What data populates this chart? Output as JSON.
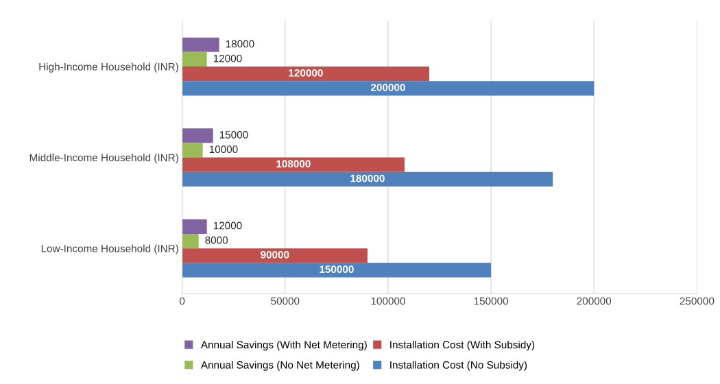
{
  "chart_data": {
    "type": "bar",
    "orientation": "horizontal",
    "categories": [
      "High-Income Household (INR)",
      "Middle-Income Household (INR)",
      "Low-Income Household (INR)"
    ],
    "series": [
      {
        "name": "Annual Savings (With Net Metering)",
        "color": "#8064a2",
        "values": [
          18000,
          15000,
          12000
        ]
      },
      {
        "name": "Annual Savings (No Net Metering)",
        "color": "#9bbb59",
        "values": [
          12000,
          10000,
          8000
        ]
      },
      {
        "name": "Installation Cost (With Subsidy)",
        "color": "#c0504d",
        "values": [
          120000,
          108000,
          90000
        ]
      },
      {
        "name": "Installation Cost (No Subsidy)",
        "color": "#4f81bd",
        "values": [
          200000,
          180000,
          150000
        ]
      }
    ],
    "xlim": [
      0,
      250000
    ],
    "xticks": [
      0,
      50000,
      100000,
      150000,
      200000,
      250000
    ],
    "grid": "x",
    "legend": "bottom",
    "data_labels": true
  }
}
